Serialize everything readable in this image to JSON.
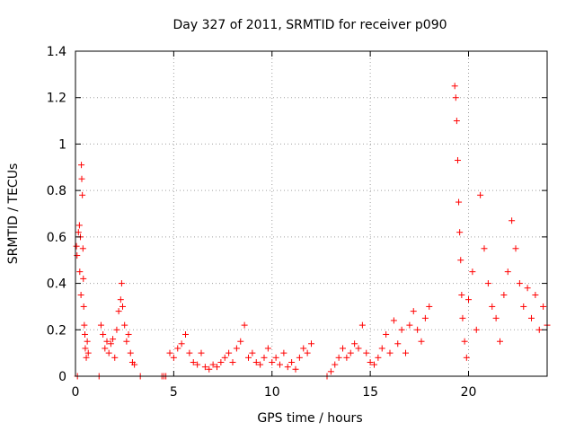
{
  "chart_data": {
    "type": "scatter",
    "title": "Day 327 of 2011, SRMTID for receiver p090",
    "xlabel": "GPS time / hours",
    "ylabel": "SRMTID / TECUs",
    "xlim": [
      0,
      24
    ],
    "ylim": [
      0,
      1.4
    ],
    "xticks": [
      0,
      5,
      10,
      15,
      20
    ],
    "xtick_labels": [
      "0",
      "5",
      "10",
      "15",
      "20"
    ],
    "yticks": [
      0,
      0.2,
      0.4,
      0.6,
      0.8,
      1.0,
      1.2,
      1.4
    ],
    "ytick_labels": [
      "0",
      "0.2",
      "0.4",
      "0.6",
      "0.8",
      "1",
      "1.2",
      "1.4"
    ],
    "grid": true,
    "marker": "plus",
    "color": "#ff0000",
    "series": [
      {
        "name": "SRMTID",
        "points": [
          [
            0.05,
            0.56
          ],
          [
            0.08,
            0.52
          ],
          [
            0.1,
            0.0
          ],
          [
            0.15,
            0.62
          ],
          [
            0.2,
            0.65
          ],
          [
            0.22,
            0.45
          ],
          [
            0.25,
            0.6
          ],
          [
            0.28,
            0.35
          ],
          [
            0.3,
            0.91
          ],
          [
            0.32,
            0.85
          ],
          [
            0.35,
            0.78
          ],
          [
            0.38,
            0.55
          ],
          [
            0.4,
            0.42
          ],
          [
            0.42,
            0.3
          ],
          [
            0.45,
            0.22
          ],
          [
            0.48,
            0.18
          ],
          [
            0.5,
            0.12
          ],
          [
            0.55,
            0.08
          ],
          [
            0.6,
            0.15
          ],
          [
            0.65,
            0.1
          ],
          [
            1.2,
            0.0
          ],
          [
            1.3,
            0.22
          ],
          [
            1.4,
            0.18
          ],
          [
            1.5,
            0.12
          ],
          [
            1.6,
            0.15
          ],
          [
            1.7,
            0.1
          ],
          [
            1.8,
            0.14
          ],
          [
            1.9,
            0.16
          ],
          [
            2.0,
            0.08
          ],
          [
            2.1,
            0.2
          ],
          [
            2.2,
            0.28
          ],
          [
            2.3,
            0.33
          ],
          [
            2.35,
            0.4
          ],
          [
            2.4,
            0.3
          ],
          [
            2.5,
            0.22
          ],
          [
            2.6,
            0.15
          ],
          [
            2.7,
            0.18
          ],
          [
            2.8,
            0.1
          ],
          [
            2.9,
            0.06
          ],
          [
            3.0,
            0.05
          ],
          [
            3.3,
            0.0
          ],
          [
            4.4,
            0.0
          ],
          [
            4.5,
            0.0
          ],
          [
            4.6,
            0.0
          ],
          [
            4.8,
            0.1
          ],
          [
            5.0,
            0.08
          ],
          [
            5.2,
            0.12
          ],
          [
            5.4,
            0.14
          ],
          [
            5.6,
            0.18
          ],
          [
            5.8,
            0.1
          ],
          [
            6.0,
            0.06
          ],
          [
            6.2,
            0.05
          ],
          [
            6.4,
            0.1
          ],
          [
            6.6,
            0.04
          ],
          [
            6.8,
            0.03
          ],
          [
            7.0,
            0.05
          ],
          [
            7.2,
            0.04
          ],
          [
            7.4,
            0.06
          ],
          [
            7.6,
            0.08
          ],
          [
            7.8,
            0.1
          ],
          [
            8.0,
            0.06
          ],
          [
            8.2,
            0.12
          ],
          [
            8.4,
            0.15
          ],
          [
            8.6,
            0.22
          ],
          [
            8.8,
            0.08
          ],
          [
            9.0,
            0.1
          ],
          [
            9.2,
            0.06
          ],
          [
            9.4,
            0.05
          ],
          [
            9.6,
            0.08
          ],
          [
            9.8,
            0.12
          ],
          [
            10.0,
            0.06
          ],
          [
            10.2,
            0.08
          ],
          [
            10.4,
            0.05
          ],
          [
            10.6,
            0.1
          ],
          [
            10.8,
            0.04
          ],
          [
            11.0,
            0.06
          ],
          [
            11.2,
            0.03
          ],
          [
            11.4,
            0.08
          ],
          [
            11.6,
            0.12
          ],
          [
            11.8,
            0.1
          ],
          [
            12.0,
            0.14
          ],
          [
            12.8,
            0.0
          ],
          [
            13.0,
            0.02
          ],
          [
            13.2,
            0.05
          ],
          [
            13.4,
            0.08
          ],
          [
            13.6,
            0.12
          ],
          [
            13.8,
            0.08
          ],
          [
            14.0,
            0.1
          ],
          [
            14.2,
            0.14
          ],
          [
            14.4,
            0.12
          ],
          [
            14.6,
            0.22
          ],
          [
            14.8,
            0.1
          ],
          [
            15.0,
            0.06
          ],
          [
            15.2,
            0.05
          ],
          [
            15.4,
            0.08
          ],
          [
            15.6,
            0.12
          ],
          [
            15.8,
            0.18
          ],
          [
            16.0,
            0.1
          ],
          [
            16.2,
            0.24
          ],
          [
            16.4,
            0.14
          ],
          [
            16.6,
            0.2
          ],
          [
            16.8,
            0.1
          ],
          [
            17.0,
            0.22
          ],
          [
            17.2,
            0.28
          ],
          [
            17.4,
            0.2
          ],
          [
            17.6,
            0.15
          ],
          [
            17.8,
            0.25
          ],
          [
            18.0,
            0.3
          ],
          [
            19.3,
            1.25
          ],
          [
            19.35,
            1.2
          ],
          [
            19.4,
            1.1
          ],
          [
            19.45,
            0.93
          ],
          [
            19.5,
            0.75
          ],
          [
            19.55,
            0.62
          ],
          [
            19.6,
            0.5
          ],
          [
            19.65,
            0.35
          ],
          [
            19.7,
            0.25
          ],
          [
            19.8,
            0.15
          ],
          [
            19.9,
            0.08
          ],
          [
            20.0,
            0.33
          ],
          [
            20.2,
            0.45
          ],
          [
            20.4,
            0.2
          ],
          [
            20.6,
            0.78
          ],
          [
            20.8,
            0.55
          ],
          [
            21.0,
            0.4
          ],
          [
            21.2,
            0.3
          ],
          [
            21.4,
            0.25
          ],
          [
            21.6,
            0.15
          ],
          [
            21.8,
            0.35
          ],
          [
            22.0,
            0.45
          ],
          [
            22.2,
            0.67
          ],
          [
            22.4,
            0.55
          ],
          [
            22.6,
            0.4
          ],
          [
            22.8,
            0.3
          ],
          [
            23.0,
            0.38
          ],
          [
            23.2,
            0.25
          ],
          [
            23.4,
            0.35
          ],
          [
            23.6,
            0.2
          ],
          [
            23.8,
            0.3
          ],
          [
            24.0,
            0.22
          ]
        ]
      }
    ]
  }
}
